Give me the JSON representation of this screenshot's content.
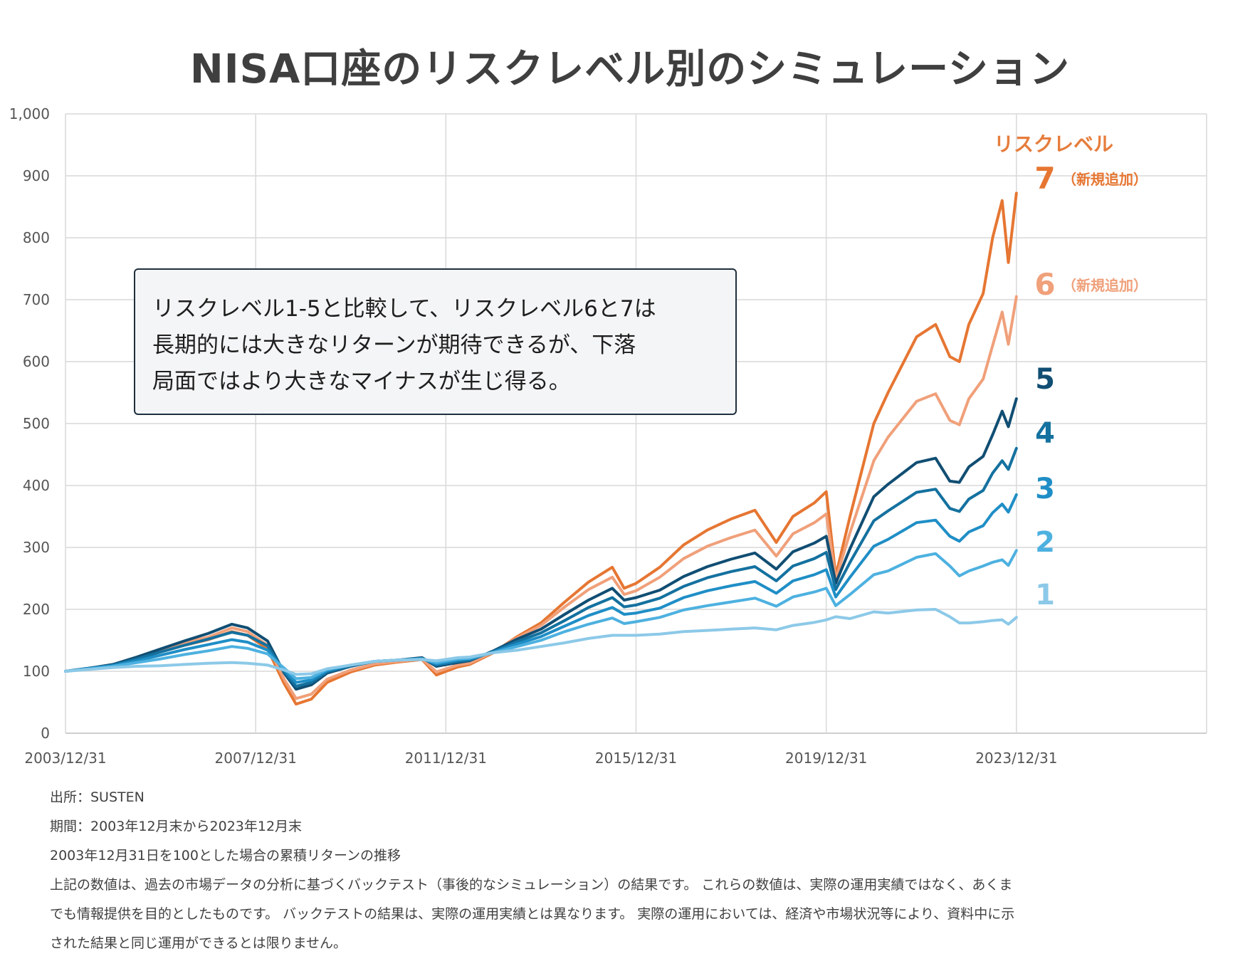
{
  "title": "NISA口座のリスクレベル別のシミュレーション",
  "callout": {
    "lines": [
      "リスクレベル1-5と比較して、リスクレベル6と7は",
      "長期的には大きなリターンが期待できるが、下落",
      "局面ではより大きなマイナスが生じ得る。"
    ]
  },
  "notes": {
    "source": "出所：SUSTEN",
    "period": "期間：2003年12月末から2023年12月末",
    "basis": "2003年12月31日を100とした場合の累積リターンの推移",
    "disclaimer_lines": [
      "上記の数値は、過去の市場データの分析に基づくバックテスト（事後的なシミュレーション）の結果です。 これらの数値は、実際の運用実績ではなく、あくま",
      "でも情報提供を目的としたものです。 バックテストの結果は、実際の運用実績とは異なります。 実際の運用においては、経済や市場状況等により、資料中に示",
      "された結果と同じ運用ができるとは限りません。"
    ]
  },
  "chart_data": {
    "type": "line",
    "title": "NISA口座のリスクレベル別のシミュレーション",
    "xlabel": "",
    "ylabel": "",
    "ylim": [
      0,
      1000
    ],
    "yticks": [
      "0",
      "100",
      "200",
      "300",
      "400",
      "500",
      "600",
      "700",
      "800",
      "900",
      "1,000"
    ],
    "xlim": [
      2004.0,
      2028.0
    ],
    "xticks": [
      {
        "x": 2004.0,
        "label": "2003/12/31"
      },
      {
        "x": 2008.0,
        "label": "2007/12/31"
      },
      {
        "x": 2012.0,
        "label": "2011/12/31"
      },
      {
        "x": 2016.0,
        "label": "2015/12/31"
      },
      {
        "x": 2020.0,
        "label": "2019/12/31"
      },
      {
        "x": 2024.0,
        "label": "2023/12/31"
      }
    ],
    "grid": true,
    "legend_title": "リスクレベル",
    "x": [
      2004.0,
      2004.5,
      2005.0,
      2005.5,
      2006.0,
      2006.5,
      2007.0,
      2007.5,
      2007.83,
      2008.25,
      2008.6,
      2008.85,
      2009.17,
      2009.5,
      2010.0,
      2010.5,
      2011.0,
      2011.5,
      2011.8,
      2012.25,
      2012.5,
      2013.0,
      2013.5,
      2014.0,
      2014.5,
      2015.0,
      2015.5,
      2015.75,
      2016.0,
      2016.5,
      2017.0,
      2017.5,
      2018.0,
      2018.5,
      2018.95,
      2019.3,
      2019.75,
      2020.0,
      2020.2,
      2020.5,
      2021.0,
      2021.3,
      2021.9,
      2022.3,
      2022.6,
      2022.8,
      2023.0,
      2023.3,
      2023.5,
      2023.7,
      2023.83,
      2024.0
    ],
    "series": [
      {
        "name": "1",
        "label": "1",
        "color": "#8cc9e8",
        "values": [
          100,
          103,
          106,
          108,
          109,
          111,
          113,
          114,
          113,
          110,
          102,
          95,
          96,
          104,
          110,
          116,
          118,
          119,
          117,
          122,
          123,
          130,
          134,
          140,
          146,
          153,
          158,
          158,
          158,
          160,
          164,
          166,
          168,
          170,
          167,
          174,
          179,
          183,
          188,
          185,
          196,
          194,
          199,
          200,
          188,
          178,
          178,
          180,
          182,
          183,
          176,
          187
        ]
      },
      {
        "name": "2",
        "label": "2",
        "color": "#4db1e0",
        "values": [
          100,
          104,
          108,
          114,
          120,
          127,
          133,
          140,
          137,
          128,
          105,
          88,
          90,
          103,
          110,
          116,
          118,
          120,
          114,
          120,
          121,
          130,
          140,
          150,
          164,
          176,
          186,
          177,
          180,
          187,
          199,
          206,
          212,
          218,
          205,
          220,
          228,
          234,
          206,
          224,
          256,
          262,
          284,
          290,
          270,
          254,
          262,
          270,
          276,
          280,
          271,
          295
        ]
      },
      {
        "name": "3",
        "label": "3",
        "color": "#1f8ec6",
        "values": [
          100,
          104,
          109,
          117,
          126,
          135,
          143,
          151,
          147,
          134,
          102,
          82,
          86,
          101,
          110,
          116,
          118,
          120,
          112,
          118,
          120,
          131,
          144,
          156,
          173,
          190,
          203,
          192,
          194,
          202,
          219,
          230,
          238,
          245,
          226,
          246,
          256,
          264,
          220,
          252,
          302,
          313,
          340,
          344,
          318,
          310,
          325,
          335,
          356,
          370,
          357,
          385
        ]
      },
      {
        "name": "4",
        "label": "4",
        "color": "#14719f",
        "values": [
          100,
          105,
          110,
          120,
          131,
          142,
          152,
          163,
          158,
          141,
          99,
          76,
          82,
          99,
          109,
          116,
          118,
          121,
          110,
          116,
          118,
          132,
          148,
          162,
          182,
          203,
          219,
          204,
          207,
          218,
          237,
          251,
          261,
          269,
          246,
          270,
          282,
          292,
          232,
          276,
          343,
          359,
          389,
          394,
          363,
          358,
          378,
          392,
          420,
          440,
          426,
          460
        ]
      },
      {
        "name": "5",
        "label": "5",
        "color": "#114e73",
        "values": [
          100,
          105,
          111,
          123,
          136,
          149,
          161,
          176,
          170,
          149,
          97,
          71,
          78,
          97,
          108,
          116,
          118,
          122,
          108,
          114,
          117,
          133,
          152,
          168,
          192,
          215,
          234,
          215,
          219,
          231,
          253,
          269,
          281,
          291,
          265,
          293,
          307,
          318,
          242,
          298,
          382,
          402,
          437,
          444,
          407,
          405,
          430,
          447,
          482,
          520,
          495,
          540
        ]
      },
      {
        "name": "6",
        "label": "6",
        "color": "#f0a07a",
        "values": [
          100,
          104,
          110,
          122,
          134,
          146,
          155,
          170,
          164,
          142,
          87,
          56,
          63,
          87,
          102,
          112,
          116,
          120,
          99,
          110,
          113,
          131,
          154,
          174,
          204,
          232,
          252,
          224,
          230,
          252,
          282,
          302,
          316,
          328,
          286,
          322,
          340,
          354,
          248,
          324,
          440,
          478,
          536,
          548,
          505,
          498,
          540,
          572,
          626,
          680,
          628,
          705
        ]
      },
      {
        "name": "7",
        "label": "7",
        "color": "#e67632",
        "values": [
          100,
          104,
          110,
          121,
          132,
          142,
          151,
          164,
          158,
          136,
          80,
          47,
          55,
          82,
          99,
          110,
          115,
          119,
          94,
          107,
          111,
          130,
          156,
          178,
          212,
          244,
          268,
          234,
          242,
          268,
          304,
          328,
          346,
          360,
          308,
          350,
          372,
          390,
          254,
          350,
          500,
          550,
          640,
          660,
          608,
          600,
          660,
          710,
          800,
          860,
          760,
          872
        ]
      }
    ],
    "series_notes": {
      "6": "（新規追加）",
      "7": "（新規追加）"
    }
  }
}
